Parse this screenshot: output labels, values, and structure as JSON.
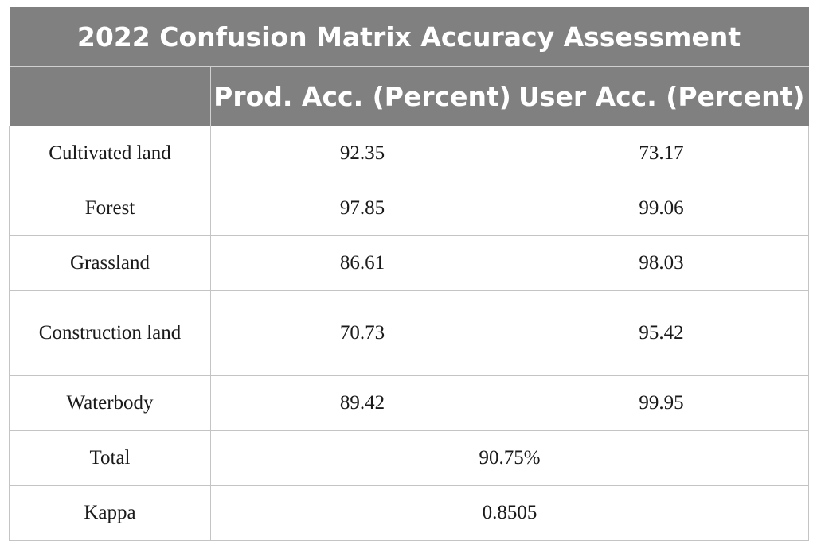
{
  "table": {
    "title": "2022 Confusion Matrix Accuracy Assessment",
    "headers": [
      "",
      "Prod. Acc. (Percent)",
      "User Acc. (Percent)"
    ],
    "rows": [
      {
        "class": "Cultivated land",
        "prod": "92.35",
        "user": "73.17"
      },
      {
        "class": "Forest",
        "prod": "97.85",
        "user": "99.06"
      },
      {
        "class": "Grassland",
        "prod": "86.61",
        "user": "98.03"
      },
      {
        "class": "Construction land",
        "prod": "70.73",
        "user": "95.42"
      },
      {
        "class": "Waterbody",
        "prod": "89.42",
        "user": "99.95"
      }
    ],
    "total": {
      "label": "Total",
      "value": "90.75%"
    },
    "kappa": {
      "label": "Kappa",
      "value": "0.8505"
    }
  }
}
